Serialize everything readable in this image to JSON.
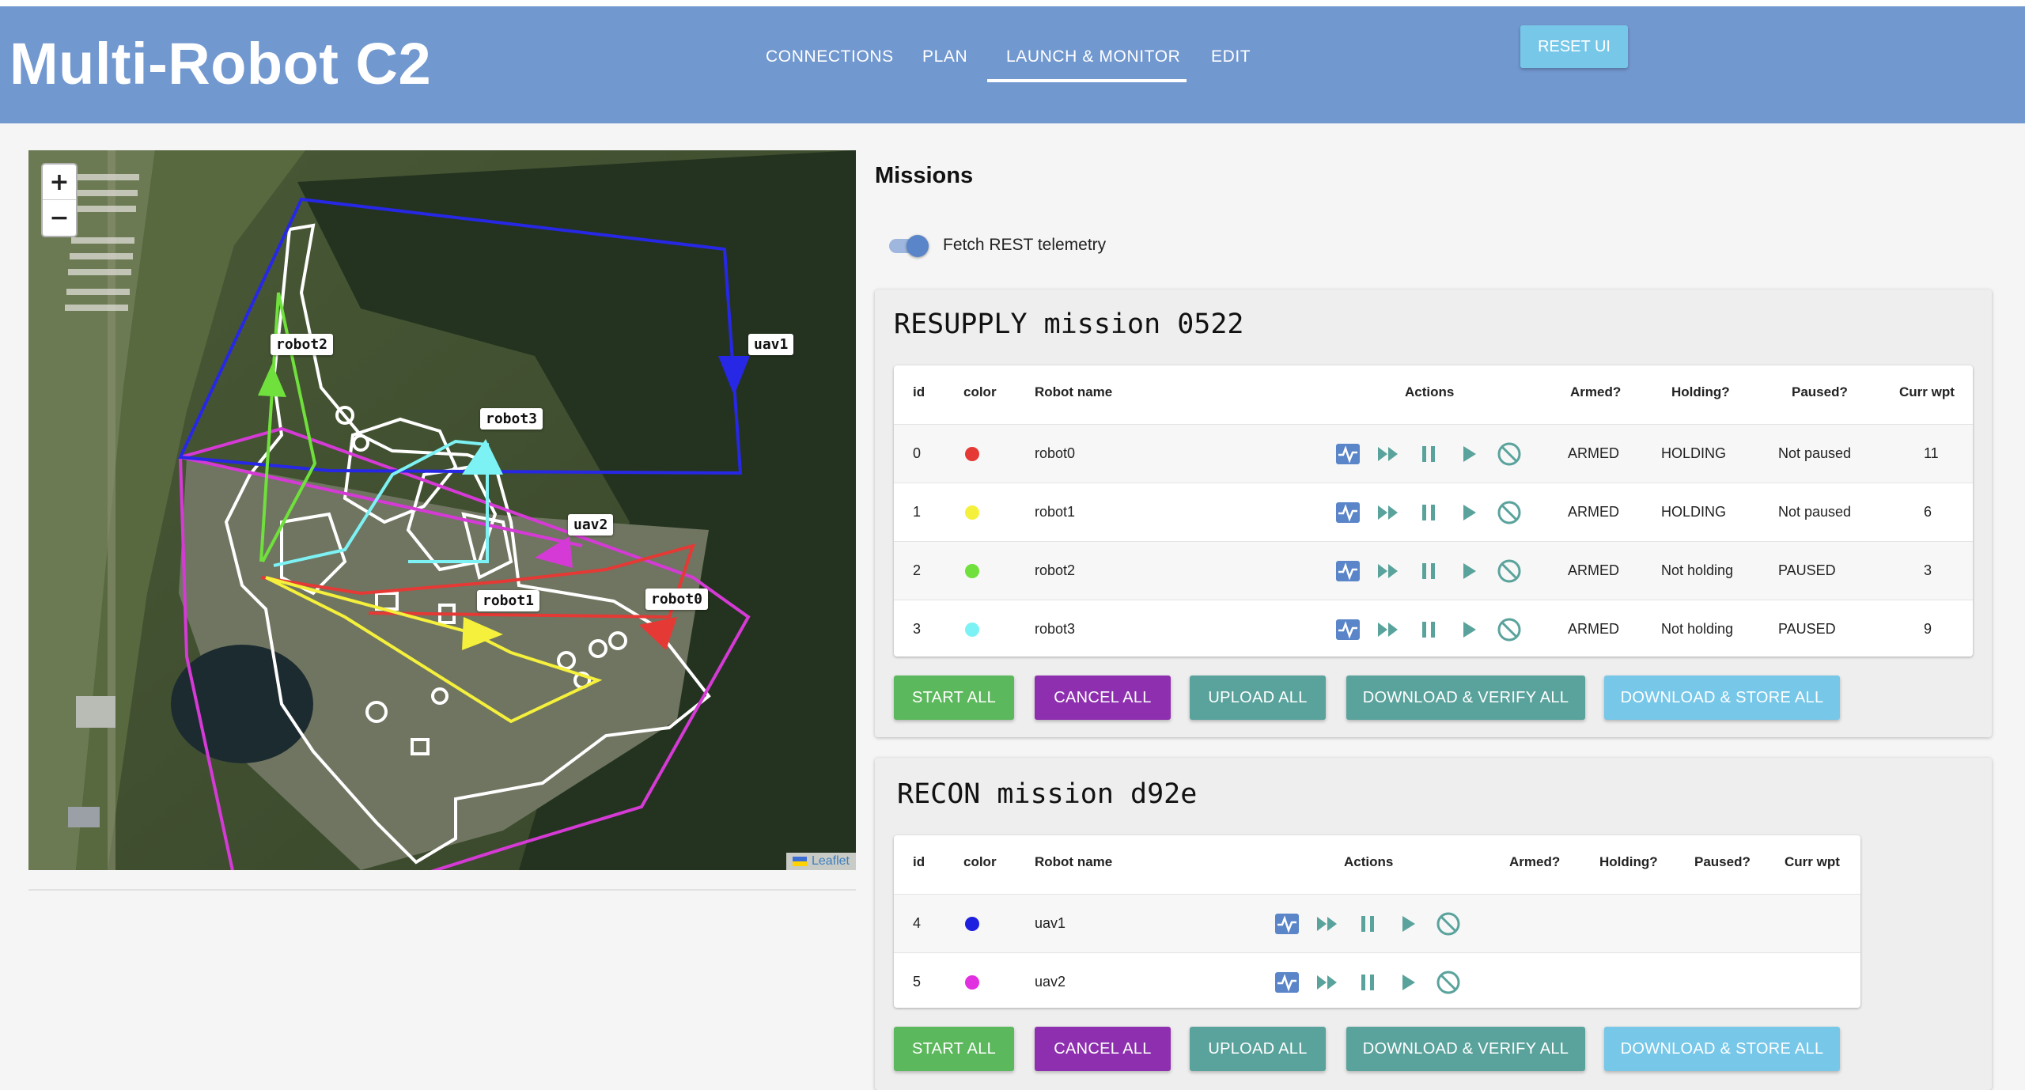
{
  "app": {
    "title": "Multi-Robot C2"
  },
  "nav": {
    "tabs": [
      {
        "label": "CONNECTIONS"
      },
      {
        "label": "PLAN"
      },
      {
        "label": "LAUNCH & MONITOR"
      },
      {
        "label": "EDIT"
      }
    ],
    "active_tab": "LAUNCH & MONITOR",
    "reset_label": "RESET UI"
  },
  "map": {
    "zoom_in": "+",
    "zoom_out": "−",
    "attribution": "Leaflet",
    "labels": {
      "robot2": "robot2",
      "robot3": "robot3",
      "uav1": "uav1",
      "uav2": "uav2",
      "robot1": "robot1",
      "robot0": "robot0"
    }
  },
  "missions": {
    "heading": "Missions",
    "telemetry_toggle": {
      "label": "Fetch REST telemetry",
      "enabled": true
    },
    "columns": {
      "id": "id",
      "color": "color",
      "name": "Robot name",
      "actions": "Actions",
      "armed": "Armed?",
      "holding": "Holding?",
      "paused": "Paused?",
      "wpt": "Curr wpt"
    },
    "buttons": {
      "start": "START ALL",
      "cancel": "CANCEL ALL",
      "upload": "UPLOAD ALL",
      "verify": "DOWNLOAD & VERIFY ALL",
      "store": "DOWNLOAD & STORE ALL"
    },
    "button_colors": {
      "start": "#5cb85c",
      "cancel": "#8e2faf",
      "upload": "#5aa39c",
      "verify": "#5aa39c",
      "store": "#77c7e9"
    },
    "resupply": {
      "title": "RESUPPLY mission 0522",
      "rows": [
        {
          "id": "0",
          "color": "#e53935",
          "name": "robot0",
          "armed": "ARMED",
          "holding": "HOLDING",
          "paused": "Not paused",
          "wpt": "11"
        },
        {
          "id": "1",
          "color": "#f5f03c",
          "name": "robot1",
          "armed": "ARMED",
          "holding": "HOLDING",
          "paused": "Not paused",
          "wpt": "6"
        },
        {
          "id": "2",
          "color": "#6fe03c",
          "name": "robot2",
          "armed": "ARMED",
          "holding": "Not holding",
          "paused": "PAUSED",
          "wpt": "3"
        },
        {
          "id": "3",
          "color": "#7df2f5",
          "name": "robot3",
          "armed": "ARMED",
          "holding": "Not holding",
          "paused": "PAUSED",
          "wpt": "9"
        }
      ]
    },
    "recon": {
      "title": "RECON mission d92e",
      "rows": [
        {
          "id": "4",
          "color": "#1f1fe0",
          "name": "uav1",
          "armed": "",
          "holding": "",
          "paused": "",
          "wpt": ""
        },
        {
          "id": "5",
          "color": "#e030e0",
          "name": "uav2",
          "armed": "",
          "holding": "",
          "paused": "",
          "wpt": ""
        }
      ]
    },
    "action_icons": [
      "telemetry-icon",
      "fast-forward-icon",
      "pause-icon",
      "play-icon",
      "cancel-icon"
    ],
    "action_color": "#5aa39c"
  }
}
